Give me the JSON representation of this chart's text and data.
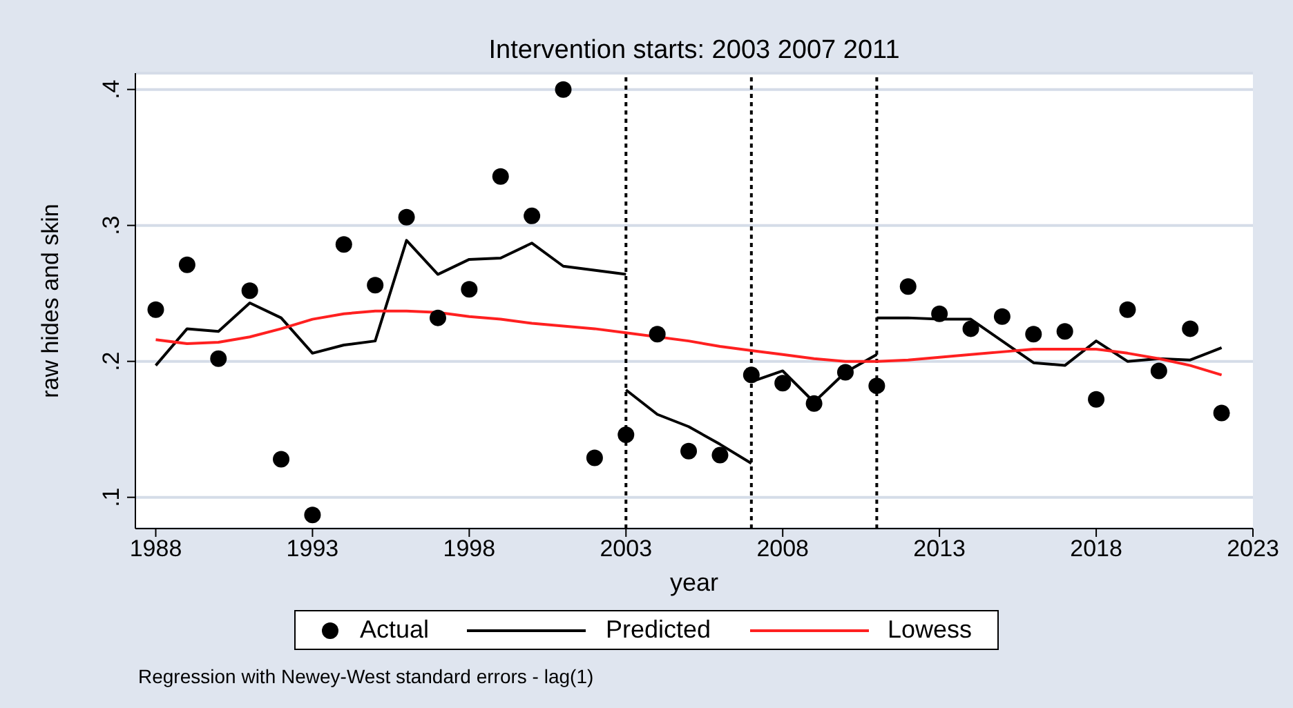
{
  "chart_data": {
    "type": "line",
    "title": "Intervention starts: 2003 2007 2011",
    "xlabel": "year",
    "ylabel": "raw hides and skin",
    "annotations": [
      "Regression with Newey-West standard errors - lag(1)"
    ],
    "xlim": [
      1987.35,
      2023
    ],
    "xticks": [
      1988,
      1993,
      1998,
      2003,
      2008,
      2013,
      2018,
      2023
    ],
    "ylim": [
      0.077,
      0.412
    ],
    "yticks": [
      {
        "value": 0.1,
        "label": ".1"
      },
      {
        "value": 0.2,
        "label": ".2"
      },
      {
        "value": 0.3,
        "label": ".3"
      },
      {
        "value": 0.4,
        "label": ".4"
      }
    ],
    "grid": "y",
    "legend": "bottom",
    "ref_lines": [
      {
        "axis": "x",
        "value": 2003,
        "color": "#000000",
        "line_style": "dotted"
      },
      {
        "axis": "x",
        "value": 2007,
        "color": "#000000",
        "line_style": "dotted"
      },
      {
        "axis": "x",
        "value": 2011,
        "color": "#000000",
        "line_style": "dotted"
      }
    ],
    "series": [
      {
        "name": "Actual",
        "type": "scatter",
        "marker": "circle",
        "color": "#000000",
        "x": [
          1988,
          1989,
          1990,
          1991,
          1992,
          1993,
          1994,
          1995,
          1996,
          1997,
          1998,
          1999,
          2000,
          2001,
          2002,
          2003,
          2004,
          2005,
          2006,
          2007,
          2008,
          2009,
          2010,
          2011,
          2012,
          2013,
          2014,
          2015,
          2016,
          2017,
          2018,
          2019,
          2020,
          2021,
          2022
        ],
        "values": [
          0.238,
          0.271,
          0.202,
          0.252,
          0.128,
          0.087,
          0.286,
          0.256,
          0.306,
          0.232,
          0.253,
          0.336,
          0.307,
          0.4,
          0.129,
          0.146,
          0.22,
          0.134,
          0.131,
          0.19,
          0.184,
          0.169,
          0.192,
          0.182,
          0.255,
          0.235,
          0.224,
          0.233,
          0.22,
          0.222,
          0.172,
          0.238,
          0.193,
          0.224,
          0.162
        ]
      },
      {
        "name": "Predicted",
        "type": "line",
        "color": "#000000",
        "x": [
          1988,
          1989,
          1990,
          1991,
          1992,
          1993,
          1994,
          1995,
          1996,
          1997,
          1998,
          1999,
          2000,
          2001,
          2003
        ],
        "values": [
          0.197,
          0.224,
          0.222,
          0.243,
          0.232,
          0.206,
          0.212,
          0.215,
          0.289,
          0.264,
          0.275,
          0.276,
          0.287,
          0.27,
          0.264
        ]
      },
      {
        "type": "line",
        "color": "#000000",
        "x": [
          2003,
          2004,
          2005,
          2006,
          2007
        ],
        "values": [
          0.179,
          0.161,
          0.152,
          0.139,
          0.125
        ]
      },
      {
        "type": "line",
        "color": "#000000",
        "x": [
          2007,
          2008,
          2009,
          2010,
          2011
        ],
        "values": [
          0.185,
          0.193,
          0.17,
          0.192,
          0.205
        ]
      },
      {
        "type": "line",
        "color": "#000000",
        "x": [
          2011,
          2012,
          2013,
          2014,
          2015,
          2016,
          2017,
          2018,
          2019,
          2020,
          2021,
          2022
        ],
        "values": [
          0.232,
          0.232,
          0.231,
          0.231,
          0.215,
          0.199,
          0.197,
          0.215,
          0.2,
          0.202,
          0.201,
          0.21
        ]
      },
      {
        "name": "Lowess",
        "type": "line",
        "color": "#ff2020",
        "x": [
          1988,
          1989,
          1990,
          1991,
          1992,
          1993,
          1994,
          1995,
          1996,
          1997,
          1998,
          1999,
          2000,
          2001,
          2002,
          2003,
          2004,
          2005,
          2006,
          2007,
          2008,
          2009,
          2010,
          2011,
          2012,
          2013,
          2014,
          2015,
          2016,
          2017,
          2018,
          2019,
          2020,
          2021,
          2022
        ],
        "values": [
          0.216,
          0.213,
          0.214,
          0.218,
          0.224,
          0.231,
          0.235,
          0.237,
          0.237,
          0.236,
          0.233,
          0.231,
          0.228,
          0.226,
          0.224,
          0.221,
          null,
          0.215,
          0.211,
          0.208,
          0.205,
          0.202,
          0.2,
          0.2,
          0.201,
          0.203,
          0.205,
          0.207,
          0.209,
          0.209,
          0.209,
          0.206,
          0.202,
          0.197,
          0.19
        ]
      }
    ]
  }
}
